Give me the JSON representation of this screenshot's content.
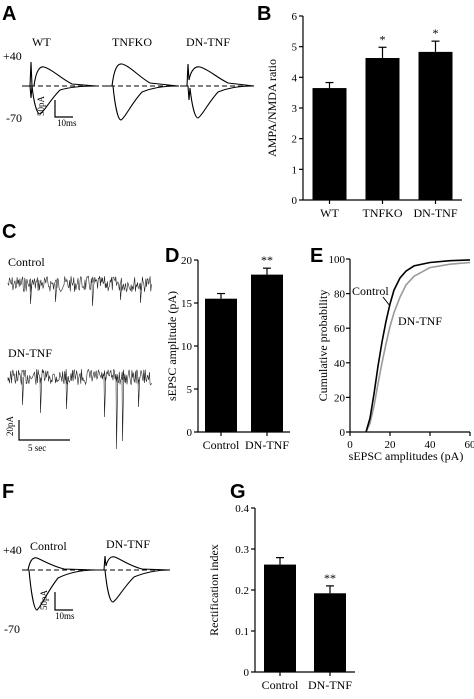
{
  "panels": {
    "A": {
      "letter": "A",
      "labels": [
        "WT",
        "TNFKO",
        "DN-TNF"
      ],
      "v_pos": "+40",
      "v_neg": "-70",
      "scale_y": "50pA",
      "scale_x": "10ms"
    },
    "C": {
      "letter": "C",
      "control": "Control",
      "dntnf": "DN-TNF",
      "scale_y": "20pA",
      "scale_x": "5 sec"
    },
    "F": {
      "letter": "F",
      "control": "Control",
      "dntnf": "DN-TNF",
      "v_pos": "+40",
      "v_neg": "-70",
      "scale_y": "50pA",
      "scale_x": "10ms"
    }
  },
  "chart_data": [
    {
      "panel": "B",
      "letter": "B",
      "type": "bar",
      "categories": [
        "WT",
        "TNFKO",
        "DN-TNF"
      ],
      "values": [
        3.65,
        4.63,
        4.83
      ],
      "errors": [
        0.18,
        0.35,
        0.35
      ],
      "annotations": [
        "",
        "*",
        "*"
      ],
      "ylabel": "AMPA/NMDA ratio",
      "ylim": [
        0,
        6
      ],
      "yticks": [
        "0",
        "1",
        "2",
        "3",
        "4",
        "5",
        "6"
      ]
    },
    {
      "panel": "D",
      "letter": "D",
      "type": "bar",
      "categories": [
        "Control",
        "DN-TNF"
      ],
      "values": [
        15.5,
        18.3
      ],
      "errors": [
        0.6,
        0.75
      ],
      "annotations": [
        "",
        "**"
      ],
      "ylabel": "sEPSC amplitude (pA)",
      "ylim": [
        0,
        20
      ],
      "yticks": [
        "0",
        "5",
        "10",
        "15",
        "20"
      ]
    },
    {
      "panel": "E",
      "letter": "E",
      "type": "line",
      "series": [
        {
          "name": "Control",
          "color": "#000000",
          "x": [
            8,
            10,
            12,
            14,
            16,
            18,
            20,
            22,
            25,
            28,
            32,
            40,
            50,
            60
          ],
          "y": [
            0,
            8,
            22,
            38,
            52,
            64,
            74,
            82,
            89,
            93,
            96,
            98,
            99,
            99.5
          ]
        },
        {
          "name": "DN-TNF",
          "color": "#9a9a9a",
          "x": [
            8,
            10,
            12,
            14,
            16,
            18,
            20,
            22,
            25,
            28,
            32,
            40,
            50,
            60
          ],
          "y": [
            0,
            5,
            15,
            28,
            40,
            51,
            61,
            69,
            78,
            85,
            90,
            95,
            97,
            98
          ]
        }
      ],
      "xlabel": "sEPSC amplitudes (pA)",
      "ylabel": "Cumulative probability",
      "xlim": [
        0,
        60
      ],
      "ylim": [
        0,
        100
      ],
      "xticks": [
        "0",
        "20",
        "40",
        "60"
      ],
      "yticks": [
        "0",
        "20",
        "40",
        "60",
        "80",
        "100"
      ]
    },
    {
      "panel": "G",
      "letter": "G",
      "type": "bar",
      "categories": [
        "Control",
        "DN-TNF"
      ],
      "values": [
        0.262,
        0.192
      ],
      "errors": [
        0.017,
        0.018
      ],
      "annotations": [
        "",
        "**"
      ],
      "ylabel": "Rectification index",
      "ylim": [
        0,
        0.4
      ],
      "yticks": [
        "0",
        "0.1",
        "0.2",
        "0.3",
        "0.4"
      ]
    }
  ]
}
